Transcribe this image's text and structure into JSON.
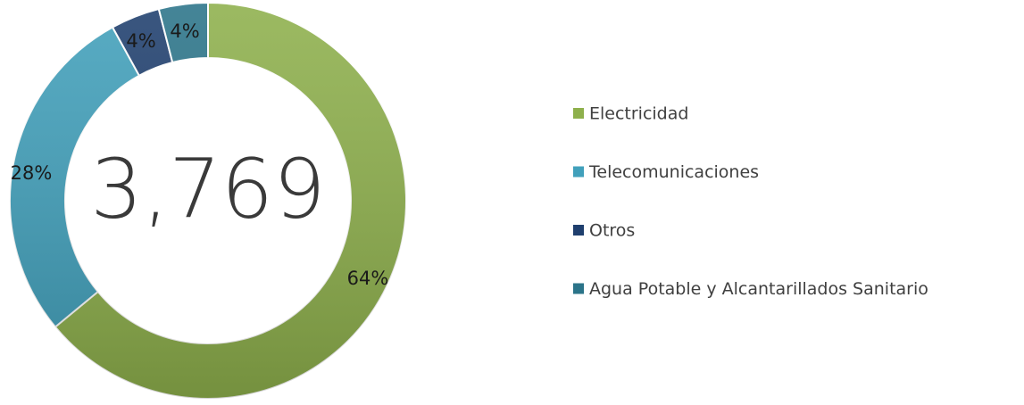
{
  "chart_data": {
    "type": "donut",
    "center_label": "3,769",
    "categories": [
      "Electricidad",
      "Telecomunicaciones",
      "Otros",
      "Agua Potable y Alcantarillados Sanitario"
    ],
    "values": [
      64,
      28,
      4,
      4
    ],
    "value_labels": [
      "64%",
      "28%",
      "4%",
      "4%"
    ],
    "colors": [
      "#8eb04c",
      "#41a0bb",
      "#1f3f6e",
      "#2b7489"
    ],
    "legend": "right"
  }
}
